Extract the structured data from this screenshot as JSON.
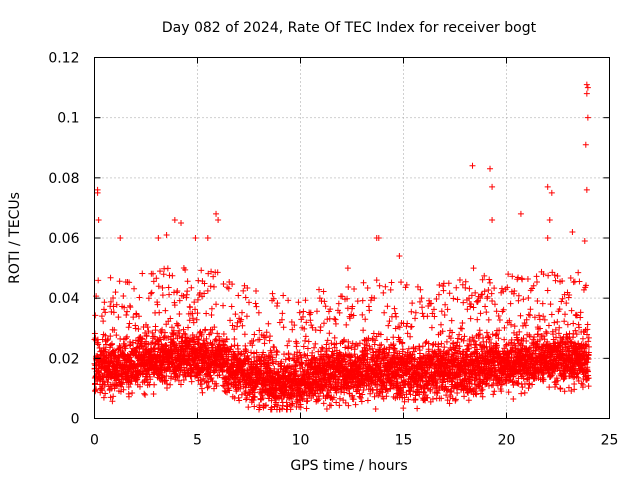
{
  "chart_data": {
    "type": "scatter",
    "title": "Day 082 of 2024, Rate Of TEC Index for receiver bogt",
    "xlabel": "GPS time / hours",
    "ylabel": "ROTI / TECUs",
    "xlim": [
      0,
      25
    ],
    "ylim": [
      0,
      0.12
    ],
    "xticks": [
      0,
      5,
      10,
      15,
      20,
      25
    ],
    "xtick_labels": [
      "0",
      "5",
      "10",
      "15",
      "20",
      "25"
    ],
    "yticks": [
      0,
      0.02,
      0.04,
      0.06,
      0.08,
      0.1,
      0.12
    ],
    "ytick_labels": [
      "0",
      "0.02",
      "0.04",
      "0.06",
      "0.08",
      "0.1",
      "0.12"
    ],
    "grid": true,
    "marker": "+",
    "series": [
      {
        "name": "ROTI",
        "color": "#ff0000",
        "x_range": [
          0,
          24
        ],
        "sample_interval_hours": 0.02,
        "baseline_profile_hours": [
          0,
          2,
          4,
          6,
          8,
          9,
          10,
          12,
          14,
          16,
          18,
          20,
          22,
          24
        ],
        "baseline_profile_values": [
          0.016,
          0.018,
          0.021,
          0.019,
          0.013,
          0.012,
          0.013,
          0.015,
          0.016,
          0.015,
          0.017,
          0.018,
          0.02,
          0.02
        ],
        "notable_points": [
          {
            "x": 0.15,
            "y": 0.076
          },
          {
            "x": 0.15,
            "y": 0.075
          },
          {
            "x": 0.2,
            "y": 0.066
          },
          {
            "x": 1.25,
            "y": 0.06
          },
          {
            "x": 3.1,
            "y": 0.06
          },
          {
            "x": 3.5,
            "y": 0.061
          },
          {
            "x": 3.9,
            "y": 0.066
          },
          {
            "x": 4.2,
            "y": 0.065
          },
          {
            "x": 4.9,
            "y": 0.06
          },
          {
            "x": 5.5,
            "y": 0.06
          },
          {
            "x": 5.9,
            "y": 0.068
          },
          {
            "x": 6.0,
            "y": 0.066
          },
          {
            "x": 12.3,
            "y": 0.05
          },
          {
            "x": 13.7,
            "y": 0.06
          },
          {
            "x": 13.8,
            "y": 0.06
          },
          {
            "x": 13.7,
            "y": 0.046
          },
          {
            "x": 14.8,
            "y": 0.054
          },
          {
            "x": 18.35,
            "y": 0.084
          },
          {
            "x": 18.4,
            "y": 0.05
          },
          {
            "x": 19.2,
            "y": 0.083
          },
          {
            "x": 19.3,
            "y": 0.077
          },
          {
            "x": 19.3,
            "y": 0.066
          },
          {
            "x": 20.7,
            "y": 0.068
          },
          {
            "x": 22.0,
            "y": 0.077
          },
          {
            "x": 22.2,
            "y": 0.075
          },
          {
            "x": 22.1,
            "y": 0.066
          },
          {
            "x": 22.0,
            "y": 0.06
          },
          {
            "x": 23.2,
            "y": 0.062
          },
          {
            "x": 23.9,
            "y": 0.111
          },
          {
            "x": 23.95,
            "y": 0.11
          },
          {
            "x": 23.9,
            "y": 0.108
          },
          {
            "x": 23.95,
            "y": 0.1
          },
          {
            "x": 23.85,
            "y": 0.091
          },
          {
            "x": 23.9,
            "y": 0.076
          },
          {
            "x": 23.8,
            "y": 0.059
          }
        ]
      }
    ]
  }
}
